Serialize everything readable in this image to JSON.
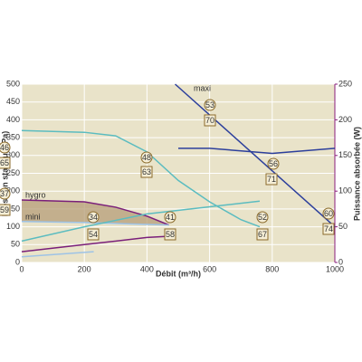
{
  "chart_data": {
    "type": "line",
    "x_label": "Débit (m³/h)",
    "y_label": "Pression statique (Pa)",
    "y2_label": "Puissance absorbée (W)",
    "xlim": [
      0,
      1000
    ],
    "xticks": [
      0,
      200,
      400,
      600,
      800,
      1000
    ],
    "ylim": [
      0,
      500
    ],
    "yticks": [
      0,
      50,
      100,
      150,
      200,
      250,
      300,
      350,
      400,
      450,
      500
    ],
    "y2lim": [
      0,
      250
    ],
    "y2ticks": [
      0,
      50,
      100,
      150,
      200,
      250
    ],
    "grid": true,
    "background": "#e9e3c9",
    "y2_color": "#8a1c7c",
    "series": [
      {
        "name": "maxi",
        "color": "#2c3f9c",
        "x": [
          490,
          1000
        ],
        "values": [
          500,
          100
        ]
      },
      {
        "color": "#5bbcc0",
        "x": [
          0,
          200,
          300,
          400,
          500,
          600,
          700,
          760
        ],
        "values": [
          370,
          365,
          355,
          310,
          230,
          170,
          120,
          100
        ]
      },
      {
        "name": "hygro",
        "color": "#7a1f7a",
        "x": [
          0,
          200,
          300,
          400,
          470
        ],
        "values": [
          175,
          170,
          155,
          130,
          105
        ]
      },
      {
        "name": "mini",
        "color": "#9ec3e6",
        "x": [
          0,
          200,
          350,
          470
        ],
        "values": [
          115,
          112,
          108,
          105
        ]
      },
      {
        "color": "#2c3f9c",
        "axis": "y2",
        "x": [
          500,
          600,
          800,
          1000
        ],
        "values": [
          160,
          160,
          153,
          160
        ]
      },
      {
        "color": "#5bbcc0",
        "axis": "y2",
        "x": [
          0,
          200,
          400,
          600,
          760
        ],
        "values": [
          30,
          50,
          68,
          78,
          86
        ]
      },
      {
        "color": "#7a1f7a",
        "axis": "y2",
        "x": [
          0,
          200,
          400,
          480
        ],
        "values": [
          15,
          25,
          35,
          37
        ]
      },
      {
        "color": "#9ec3e6",
        "axis": "y2",
        "x": [
          0,
          230
        ],
        "values": [
          8,
          15
        ]
      }
    ],
    "annotations": [
      {
        "shape": "circle",
        "text": "46"
      },
      {
        "shape": "box",
        "text": "65"
      },
      {
        "shape": "circle",
        "text": "53"
      },
      {
        "shape": "box",
        "text": "70"
      },
      {
        "shape": "circle",
        "text": "56"
      },
      {
        "shape": "box",
        "text": "71"
      },
      {
        "shape": "circle",
        "text": "60"
      },
      {
        "shape": "box",
        "text": "74"
      },
      {
        "shape": "circle",
        "text": "37"
      },
      {
        "shape": "box",
        "text": "59"
      },
      {
        "shape": "circle",
        "text": "34"
      },
      {
        "shape": "box",
        "text": "54"
      },
      {
        "shape": "circle",
        "text": "41"
      },
      {
        "shape": "box",
        "text": "58"
      },
      {
        "shape": "circle",
        "text": "48"
      },
      {
        "shape": "box",
        "text": "63"
      },
      {
        "shape": "circle",
        "text": "52"
      },
      {
        "shape": "box",
        "text": "67"
      }
    ]
  }
}
